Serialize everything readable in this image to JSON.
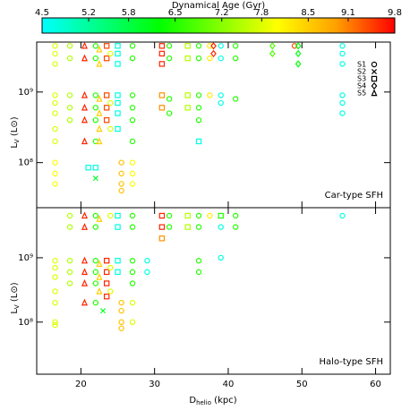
{
  "chart_data": {
    "type": "scatter",
    "colorbar": {
      "title": "Dynamical Age (Gyr)",
      "clim": [
        4.5,
        9.8
      ],
      "ticks": [
        4.5,
        5.2,
        5.8,
        6.5,
        7.2,
        7.8,
        8.5,
        9.1,
        9.8
      ],
      "colormap": [
        "#00ffff",
        "#00ff80",
        "#00ff00",
        "#80ff00",
        "#ffff00",
        "#ffa000",
        "#ff0000"
      ]
    },
    "xlabel": "D",
    "xlabel_sub": "helio",
    "xlabel_unit": "(kpc)",
    "ylabel": "L",
    "ylabel_sub": "V",
    "ylabel_unit": "(L⊙)",
    "xlim": [
      14,
      62
    ],
    "xticks": [
      20,
      30,
      40,
      50,
      60
    ],
    "ylog": true,
    "legend": [
      "S1",
      "S2",
      "S3",
      "S4",
      "S5"
    ],
    "panels": [
      {
        "label": "Car-type SFH",
        "ylim": [
          23000000.0,
          5100000000.0
        ],
        "yticks": [
          {
            "value": 1000000000.0,
            "label": "10⁹"
          },
          {
            "value": 100000000.0,
            "label": "10⁸"
          }
        ],
        "points": [
          [
            16.5,
            4500000000.0,
            7.8,
            "S1"
          ],
          [
            16.5,
            3500000000.0,
            7.8,
            "S1"
          ],
          [
            16.5,
            2500000000.0,
            7.8,
            "S1"
          ],
          [
            16.5,
            900000000.0,
            7.8,
            "S1"
          ],
          [
            16.5,
            700000000.0,
            7.8,
            "S1"
          ],
          [
            16.5,
            500000000.0,
            7.8,
            "S1"
          ],
          [
            16.5,
            300000000.0,
            7.8,
            "S1"
          ],
          [
            16.5,
            200000000.0,
            7.8,
            "S1"
          ],
          [
            16.5,
            100000000.0,
            8.0,
            "S1"
          ],
          [
            16.5,
            70000000.0,
            8.0,
            "S1"
          ],
          [
            16.5,
            50000000.0,
            8.0,
            "S1"
          ],
          [
            18.5,
            4500000000.0,
            7.5,
            "S1"
          ],
          [
            18.5,
            3000000000.0,
            7.5,
            "S1"
          ],
          [
            18.5,
            900000000.0,
            7.5,
            "S1"
          ],
          [
            18.5,
            600000000.0,
            7.5,
            "S1"
          ],
          [
            18.5,
            400000000.0,
            7.5,
            "S1"
          ],
          [
            20.5,
            4500000000.0,
            9.6,
            "S5"
          ],
          [
            20.5,
            3000000000.0,
            9.6,
            "S5"
          ],
          [
            20.5,
            900000000.0,
            9.6,
            "S5"
          ],
          [
            20.5,
            600000000.0,
            9.6,
            "S5"
          ],
          [
            20.5,
            400000000.0,
            9.6,
            "S5"
          ],
          [
            20.5,
            200000000.0,
            9.6,
            "S5"
          ],
          [
            21,
            85000000.0,
            4.7,
            "S3"
          ],
          [
            22,
            85000000.0,
            4.7,
            "S3"
          ],
          [
            22,
            60000000.0,
            6.0,
            "S2"
          ],
          [
            22,
            4500000000.0,
            6.5,
            "S1"
          ],
          [
            22,
            3000000000.0,
            6.5,
            "S1"
          ],
          [
            22,
            900000000.0,
            6.5,
            "S1"
          ],
          [
            22,
            600000000.0,
            6.5,
            "S1"
          ],
          [
            22,
            400000000.0,
            6.5,
            "S1"
          ],
          [
            22,
            200000000.0,
            6.5,
            "S1"
          ],
          [
            22.5,
            4000000000.0,
            8.5,
            "S5"
          ],
          [
            22.5,
            2500000000.0,
            8.5,
            "S5"
          ],
          [
            22.5,
            800000000.0,
            8.5,
            "S5"
          ],
          [
            22.5,
            500000000.0,
            8.5,
            "S5"
          ],
          [
            22.5,
            300000000.0,
            8.5,
            "S5"
          ],
          [
            22.5,
            200000000.0,
            8.5,
            "S5"
          ],
          [
            23.5,
            4500000000.0,
            9.4,
            "S3"
          ],
          [
            23.5,
            3000000000.0,
            9.4,
            "S3"
          ],
          [
            23.5,
            900000000.0,
            9.4,
            "S3"
          ],
          [
            23.5,
            600000000.0,
            9.4,
            "S3"
          ],
          [
            23.5,
            400000000.0,
            9.4,
            "S3"
          ],
          [
            24,
            3500000000.0,
            7.8,
            "S1"
          ],
          [
            24,
            700000000.0,
            7.8,
            "S1"
          ],
          [
            24,
            300000000.0,
            7.8,
            "S1"
          ],
          [
            25,
            4500000000.0,
            4.7,
            "S3"
          ],
          [
            25,
            3500000000.0,
            4.7,
            "S3"
          ],
          [
            25,
            2500000000.0,
            4.7,
            "S3"
          ],
          [
            25,
            900000000.0,
            4.7,
            "S3"
          ],
          [
            25,
            700000000.0,
            4.7,
            "S3"
          ],
          [
            25,
            500000000.0,
            4.7,
            "S3"
          ],
          [
            25,
            300000000.0,
            4.7,
            "S3"
          ],
          [
            25.5,
            100000000.0,
            8.6,
            "S1"
          ],
          [
            25.5,
            70000000.0,
            8.6,
            "S1"
          ],
          [
            25.5,
            50000000.0,
            8.6,
            "S1"
          ],
          [
            25.5,
            40000000.0,
            8.6,
            "S1"
          ],
          [
            27,
            4500000000.0,
            6.5,
            "S1"
          ],
          [
            27,
            3000000000.0,
            6.5,
            "S1"
          ],
          [
            27,
            900000000.0,
            6.5,
            "S1"
          ],
          [
            27,
            600000000.0,
            6.5,
            "S1"
          ],
          [
            27,
            400000000.0,
            6.5,
            "S1"
          ],
          [
            27,
            200000000.0,
            6.5,
            "S1"
          ],
          [
            27,
            100000000.0,
            8.0,
            "S1"
          ],
          [
            27,
            70000000.0,
            8.0,
            "S1"
          ],
          [
            27,
            50000000.0,
            8.0,
            "S1"
          ],
          [
            31,
            4500000000.0,
            9.6,
            "S3"
          ],
          [
            31,
            3500000000.0,
            9.6,
            "S3"
          ],
          [
            31,
            2500000000.0,
            9.6,
            "S3"
          ],
          [
            31,
            900000000.0,
            9.0,
            "S3"
          ],
          [
            31,
            600000000.0,
            9.0,
            "S3"
          ],
          [
            32,
            4500000000.0,
            6.5,
            "S1"
          ],
          [
            32,
            3000000000.0,
            6.5,
            "S1"
          ],
          [
            32,
            800000000.0,
            6.5,
            "S1"
          ],
          [
            32,
            500000000.0,
            6.5,
            "S1"
          ],
          [
            34.5,
            4500000000.0,
            7.5,
            "S3"
          ],
          [
            34.5,
            3000000000.0,
            7.5,
            "S3"
          ],
          [
            34.5,
            900000000.0,
            7.5,
            "S3"
          ],
          [
            34.5,
            600000000.0,
            7.5,
            "S3"
          ],
          [
            36,
            4500000000.0,
            6.5,
            "S1"
          ],
          [
            36,
            3000000000.0,
            6.5,
            "S1"
          ],
          [
            36,
            900000000.0,
            6.5,
            "S1"
          ],
          [
            36,
            600000000.0,
            6.5,
            "S1"
          ],
          [
            36,
            400000000.0,
            6.5,
            "S1"
          ],
          [
            36,
            200000000.0,
            4.7,
            "S3"
          ],
          [
            37.5,
            4500000000.0,
            8.2,
            "S1"
          ],
          [
            37.5,
            3000000000.0,
            8.2,
            "S1"
          ],
          [
            37.5,
            900000000.0,
            8.2,
            "S1"
          ],
          [
            38,
            4500000000.0,
            9.6,
            "S4"
          ],
          [
            38,
            3500000000.0,
            9.6,
            "S4"
          ],
          [
            39,
            4500000000.0,
            4.7,
            "S1"
          ],
          [
            39,
            3000000000.0,
            4.7,
            "S1"
          ],
          [
            39,
            900000000.0,
            4.7,
            "S1"
          ],
          [
            39,
            700000000.0,
            4.7,
            "S1"
          ],
          [
            41,
            4500000000.0,
            6.5,
            "S1"
          ],
          [
            41,
            3000000000.0,
            6.5,
            "S1"
          ],
          [
            41,
            800000000.0,
            6.5,
            "S1"
          ],
          [
            46,
            4500000000.0,
            6.8,
            "S4"
          ],
          [
            46,
            3500000000.0,
            6.8,
            "S4"
          ],
          [
            49,
            4500000000.0,
            9.4,
            "S1"
          ],
          [
            49.5,
            4500000000.0,
            6.2,
            "S4"
          ],
          [
            49.5,
            3500000000.0,
            6.2,
            "S4"
          ],
          [
            49.5,
            2500000000.0,
            6.2,
            "S4"
          ],
          [
            55.5,
            4500000000.0,
            4.7,
            "S1"
          ],
          [
            55.5,
            3500000000.0,
            4.7,
            "S1"
          ],
          [
            55.5,
            2500000000.0,
            4.7,
            "S1"
          ],
          [
            55.5,
            900000000.0,
            4.7,
            "S1"
          ],
          [
            55.5,
            700000000.0,
            4.7,
            "S1"
          ],
          [
            55.5,
            500000000.0,
            4.7,
            "S1"
          ]
        ]
      },
      {
        "label": "Halo-type SFH",
        "ylim": [
          15500000.0,
          6000000000.0
        ],
        "yticks": [
          {
            "value": 1000000000.0,
            "label": "10⁹"
          },
          {
            "value": 100000000.0,
            "label": "10⁸"
          }
        ],
        "points": [
          [
            16.5,
            900000000.0,
            7.8,
            "S1"
          ],
          [
            16.5,
            700000000.0,
            7.8,
            "S1"
          ],
          [
            16.5,
            500000000.0,
            7.8,
            "S1"
          ],
          [
            16.5,
            300000000.0,
            7.8,
            "S1"
          ],
          [
            16.5,
            200000000.0,
            7.8,
            "S1"
          ],
          [
            16.5,
            100000000.0,
            7.8,
            "S1"
          ],
          [
            16.5,
            90000000.0,
            7.8,
            "S1"
          ],
          [
            18.5,
            4500000000.0,
            7.5,
            "S1"
          ],
          [
            18.5,
            3000000000.0,
            7.5,
            "S1"
          ],
          [
            18.5,
            900000000.0,
            7.5,
            "S1"
          ],
          [
            18.5,
            600000000.0,
            7.5,
            "S1"
          ],
          [
            18.5,
            400000000.0,
            7.5,
            "S1"
          ],
          [
            20.5,
            4500000000.0,
            9.6,
            "S5"
          ],
          [
            20.5,
            3000000000.0,
            9.6,
            "S5"
          ],
          [
            20.5,
            900000000.0,
            9.6,
            "S5"
          ],
          [
            20.5,
            600000000.0,
            9.6,
            "S5"
          ],
          [
            20.5,
            400000000.0,
            9.6,
            "S5"
          ],
          [
            20.5,
            200000000.0,
            9.6,
            "S5"
          ],
          [
            22,
            4500000000.0,
            6.5,
            "S1"
          ],
          [
            22,
            3000000000.0,
            6.5,
            "S1"
          ],
          [
            22,
            900000000.0,
            6.5,
            "S1"
          ],
          [
            22,
            600000000.0,
            6.5,
            "S1"
          ],
          [
            22,
            400000000.0,
            6.5,
            "S1"
          ],
          [
            22,
            200000000.0,
            6.5,
            "S1"
          ],
          [
            22.5,
            4000000000.0,
            8.5,
            "S5"
          ],
          [
            22.5,
            800000000.0,
            8.5,
            "S5"
          ],
          [
            22.5,
            500000000.0,
            8.5,
            "S5"
          ],
          [
            22.5,
            300000000.0,
            8.5,
            "S5"
          ],
          [
            23.5,
            900000000.0,
            9.6,
            "S3"
          ],
          [
            23.5,
            600000000.0,
            9.6,
            "S3"
          ],
          [
            23.5,
            400000000.0,
            9.6,
            "S3"
          ],
          [
            23.5,
            250000000.0,
            9.6,
            "S3"
          ],
          [
            23,
            150000000.0,
            6.0,
            "S2"
          ],
          [
            24,
            4500000000.0,
            7.8,
            "S1"
          ],
          [
            24,
            700000000.0,
            7.8,
            "S1"
          ],
          [
            24,
            300000000.0,
            7.8,
            "S1"
          ],
          [
            25,
            4500000000.0,
            4.7,
            "S3"
          ],
          [
            25,
            3000000000.0,
            4.7,
            "S3"
          ],
          [
            25,
            900000000.0,
            4.7,
            "S3"
          ],
          [
            25,
            600000000.0,
            4.7,
            "S3"
          ],
          [
            25.5,
            200000000.0,
            8.6,
            "S1"
          ],
          [
            25.5,
            150000000.0,
            8.6,
            "S1"
          ],
          [
            25.5,
            100000000.0,
            8.6,
            "S1"
          ],
          [
            25.5,
            80000000.0,
            8.6,
            "S1"
          ],
          [
            27,
            4500000000.0,
            6.5,
            "S1"
          ],
          [
            27,
            3000000000.0,
            6.5,
            "S1"
          ],
          [
            27,
            900000000.0,
            6.5,
            "S1"
          ],
          [
            27,
            600000000.0,
            6.5,
            "S1"
          ],
          [
            27,
            400000000.0,
            6.5,
            "S1"
          ],
          [
            27,
            200000000.0,
            7.8,
            "S1"
          ],
          [
            27,
            100000000.0,
            7.8,
            "S1"
          ],
          [
            29,
            900000000.0,
            4.7,
            "S1"
          ],
          [
            29,
            600000000.0,
            4.7,
            "S1"
          ],
          [
            31,
            4500000000.0,
            9.6,
            "S3"
          ],
          [
            31,
            3000000000.0,
            9.6,
            "S3"
          ],
          [
            31,
            2000000000.0,
            9.0,
            "S3"
          ],
          [
            32,
            4500000000.0,
            6.5,
            "S1"
          ],
          [
            32,
            3000000000.0,
            6.5,
            "S1"
          ],
          [
            34.5,
            4500000000.0,
            7.5,
            "S3"
          ],
          [
            34.5,
            3000000000.0,
            7.5,
            "S3"
          ],
          [
            36,
            4500000000.0,
            6.5,
            "S1"
          ],
          [
            36,
            3000000000.0,
            6.5,
            "S1"
          ],
          [
            36,
            900000000.0,
            6.5,
            "S1"
          ],
          [
            36,
            600000000.0,
            6.5,
            "S1"
          ],
          [
            37.5,
            4500000000.0,
            8.2,
            "S1"
          ],
          [
            39,
            4500000000.0,
            6.5,
            "S3"
          ],
          [
            39,
            3000000000.0,
            4.7,
            "S1"
          ],
          [
            39,
            1000000000.0,
            4.7,
            "S1"
          ],
          [
            41,
            4500000000.0,
            6.5,
            "S1"
          ],
          [
            41,
            3000000000.0,
            6.5,
            "S1"
          ],
          [
            55.5,
            4500000000.0,
            4.7,
            "S1"
          ]
        ]
      }
    ]
  }
}
